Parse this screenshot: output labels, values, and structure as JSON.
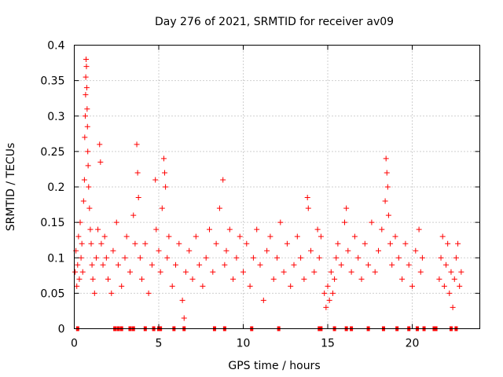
{
  "chart_data": {
    "type": "scatter",
    "title": "Day 276 of 2021, SRMTID for receiver av09",
    "xlabel": "GPS time / hours",
    "ylabel": "SRMTID / TECUs",
    "xlim": [
      0,
      24
    ],
    "ylim": [
      0,
      0.4
    ],
    "x_ticks": [
      0,
      5,
      10,
      15,
      20
    ],
    "x_tick_labels": [
      "0",
      "5",
      "10",
      "15",
      "20"
    ],
    "y_ticks": [
      0,
      0.05,
      0.1,
      0.15,
      0.2,
      0.25,
      0.3,
      0.35,
      0.4
    ],
    "y_tick_labels": [
      "0",
      "0.05",
      "0.1",
      "0.15",
      "0.2",
      "0.25",
      "0.3",
      "0.35",
      "0.4"
    ],
    "grid": true,
    "marker": "plus",
    "color": "#ff0000",
    "baseline_markers_x": [
      0.2,
      2.4,
      2.6,
      2.8,
      3.3,
      3.5,
      4.2,
      4.7,
      5.0,
      5.1,
      5.9,
      6.5,
      8.3,
      8.9,
      10.5,
      12.1,
      14.5,
      14.6,
      15.4,
      16.1,
      16.4,
      17.4,
      18.3,
      19.1,
      19.8,
      20.3,
      20.7,
      21.3,
      21.4,
      22.3,
      22.6
    ],
    "series": [
      {
        "name": "SRMTID",
        "points": [
          [
            0.05,
            0.08
          ],
          [
            0.1,
            0.11
          ],
          [
            0.15,
            0.06
          ],
          [
            0.2,
            0.09
          ],
          [
            0.25,
            0.13
          ],
          [
            0.3,
            0.07
          ],
          [
            0.35,
            0.15
          ],
          [
            0.4,
            0.1
          ],
          [
            0.45,
            0.12
          ],
          [
            0.5,
            0.08
          ],
          [
            0.55,
            0.18
          ],
          [
            0.6,
            0.21
          ],
          [
            0.62,
            0.27
          ],
          [
            0.65,
            0.3
          ],
          [
            0.67,
            0.33
          ],
          [
            0.68,
            0.355
          ],
          [
            0.7,
            0.38
          ],
          [
            0.72,
            0.37
          ],
          [
            0.74,
            0.34
          ],
          [
            0.76,
            0.31
          ],
          [
            0.78,
            0.285
          ],
          [
            0.8,
            0.25
          ],
          [
            0.82,
            0.23
          ],
          [
            0.85,
            0.2
          ],
          [
            0.9,
            0.17
          ],
          [
            0.95,
            0.14
          ],
          [
            1.0,
            0.12
          ],
          [
            1.05,
            0.09
          ],
          [
            1.1,
            0.07
          ],
          [
            1.2,
            0.05
          ],
          [
            1.3,
            0.1
          ],
          [
            1.4,
            0.14
          ],
          [
            1.5,
            0.26
          ],
          [
            1.55,
            0.235
          ],
          [
            1.6,
            0.12
          ],
          [
            1.7,
            0.09
          ],
          [
            1.8,
            0.13
          ],
          [
            1.9,
            0.1
          ],
          [
            2.0,
            0.07
          ],
          [
            2.2,
            0.05
          ],
          [
            2.3,
            0.11
          ],
          [
            2.5,
            0.15
          ],
          [
            2.6,
            0.09
          ],
          [
            2.8,
            0.06
          ],
          [
            3.0,
            0.1
          ],
          [
            3.1,
            0.13
          ],
          [
            3.3,
            0.08
          ],
          [
            3.5,
            0.16
          ],
          [
            3.6,
            0.12
          ],
          [
            3.7,
            0.26
          ],
          [
            3.75,
            0.22
          ],
          [
            3.8,
            0.185
          ],
          [
            3.9,
            0.1
          ],
          [
            4.0,
            0.07
          ],
          [
            4.2,
            0.12
          ],
          [
            4.4,
            0.05
          ],
          [
            4.6,
            0.09
          ],
          [
            4.8,
            0.21
          ],
          [
            4.85,
            0.14
          ],
          [
            5.0,
            0.11
          ],
          [
            5.1,
            0.08
          ],
          [
            5.2,
            0.17
          ],
          [
            5.3,
            0.24
          ],
          [
            5.35,
            0.22
          ],
          [
            5.4,
            0.2
          ],
          [
            5.5,
            0.1
          ],
          [
            5.6,
            0.13
          ],
          [
            5.8,
            0.06
          ],
          [
            6.0,
            0.09
          ],
          [
            6.2,
            0.12
          ],
          [
            6.4,
            0.04
          ],
          [
            6.5,
            0.015
          ],
          [
            6.6,
            0.08
          ],
          [
            6.8,
            0.11
          ],
          [
            7.0,
            0.07
          ],
          [
            7.2,
            0.13
          ],
          [
            7.4,
            0.09
          ],
          [
            7.6,
            0.06
          ],
          [
            7.8,
            0.1
          ],
          [
            8.0,
            0.14
          ],
          [
            8.2,
            0.08
          ],
          [
            8.4,
            0.12
          ],
          [
            8.6,
            0.17
          ],
          [
            8.8,
            0.21
          ],
          [
            8.9,
            0.09
          ],
          [
            9.0,
            0.11
          ],
          [
            9.2,
            0.14
          ],
          [
            9.4,
            0.07
          ],
          [
            9.6,
            0.1
          ],
          [
            9.8,
            0.13
          ],
          [
            10.0,
            0.08
          ],
          [
            10.2,
            0.12
          ],
          [
            10.4,
            0.06
          ],
          [
            10.6,
            0.1
          ],
          [
            10.8,
            0.14
          ],
          [
            11.0,
            0.09
          ],
          [
            11.2,
            0.04
          ],
          [
            11.4,
            0.11
          ],
          [
            11.6,
            0.13
          ],
          [
            11.8,
            0.07
          ],
          [
            12.0,
            0.1
          ],
          [
            12.2,
            0.15
          ],
          [
            12.4,
            0.08
          ],
          [
            12.6,
            0.12
          ],
          [
            12.8,
            0.06
          ],
          [
            13.0,
            0.09
          ],
          [
            13.2,
            0.13
          ],
          [
            13.4,
            0.1
          ],
          [
            13.6,
            0.07
          ],
          [
            13.8,
            0.185
          ],
          [
            13.85,
            0.17
          ],
          [
            14.0,
            0.11
          ],
          [
            14.2,
            0.08
          ],
          [
            14.4,
            0.14
          ],
          [
            14.5,
            0.1
          ],
          [
            14.6,
            0.13
          ],
          [
            14.8,
            0.05
          ],
          [
            14.9,
            0.03
          ],
          [
            15.0,
            0.06
          ],
          [
            15.1,
            0.04
          ],
          [
            15.2,
            0.08
          ],
          [
            15.3,
            0.05
          ],
          [
            15.4,
            0.07
          ],
          [
            15.5,
            0.1
          ],
          [
            15.6,
            0.12
          ],
          [
            15.8,
            0.09
          ],
          [
            16.0,
            0.15
          ],
          [
            16.1,
            0.17
          ],
          [
            16.2,
            0.11
          ],
          [
            16.4,
            0.08
          ],
          [
            16.6,
            0.13
          ],
          [
            16.8,
            0.1
          ],
          [
            17.0,
            0.07
          ],
          [
            17.2,
            0.12
          ],
          [
            17.4,
            0.09
          ],
          [
            17.6,
            0.15
          ],
          [
            17.8,
            0.08
          ],
          [
            18.0,
            0.11
          ],
          [
            18.2,
            0.14
          ],
          [
            18.4,
            0.18
          ],
          [
            18.45,
            0.24
          ],
          [
            18.5,
            0.22
          ],
          [
            18.55,
            0.2
          ],
          [
            18.6,
            0.16
          ],
          [
            18.7,
            0.12
          ],
          [
            18.8,
            0.09
          ],
          [
            19.0,
            0.13
          ],
          [
            19.2,
            0.1
          ],
          [
            19.4,
            0.07
          ],
          [
            19.6,
            0.12
          ],
          [
            19.8,
            0.09
          ],
          [
            20.0,
            0.06
          ],
          [
            20.2,
            0.11
          ],
          [
            20.4,
            0.14
          ],
          [
            20.5,
            0.08
          ],
          [
            20.6,
            0.1
          ],
          [
            21.6,
            0.07
          ],
          [
            21.7,
            0.1
          ],
          [
            21.8,
            0.13
          ],
          [
            21.9,
            0.06
          ],
          [
            22.0,
            0.09
          ],
          [
            22.1,
            0.12
          ],
          [
            22.2,
            0.05
          ],
          [
            22.3,
            0.08
          ],
          [
            22.4,
            0.03
          ],
          [
            22.5,
            0.07
          ],
          [
            22.6,
            0.1
          ],
          [
            22.7,
            0.12
          ],
          [
            22.8,
            0.06
          ],
          [
            22.9,
            0.08
          ]
        ]
      }
    ]
  }
}
